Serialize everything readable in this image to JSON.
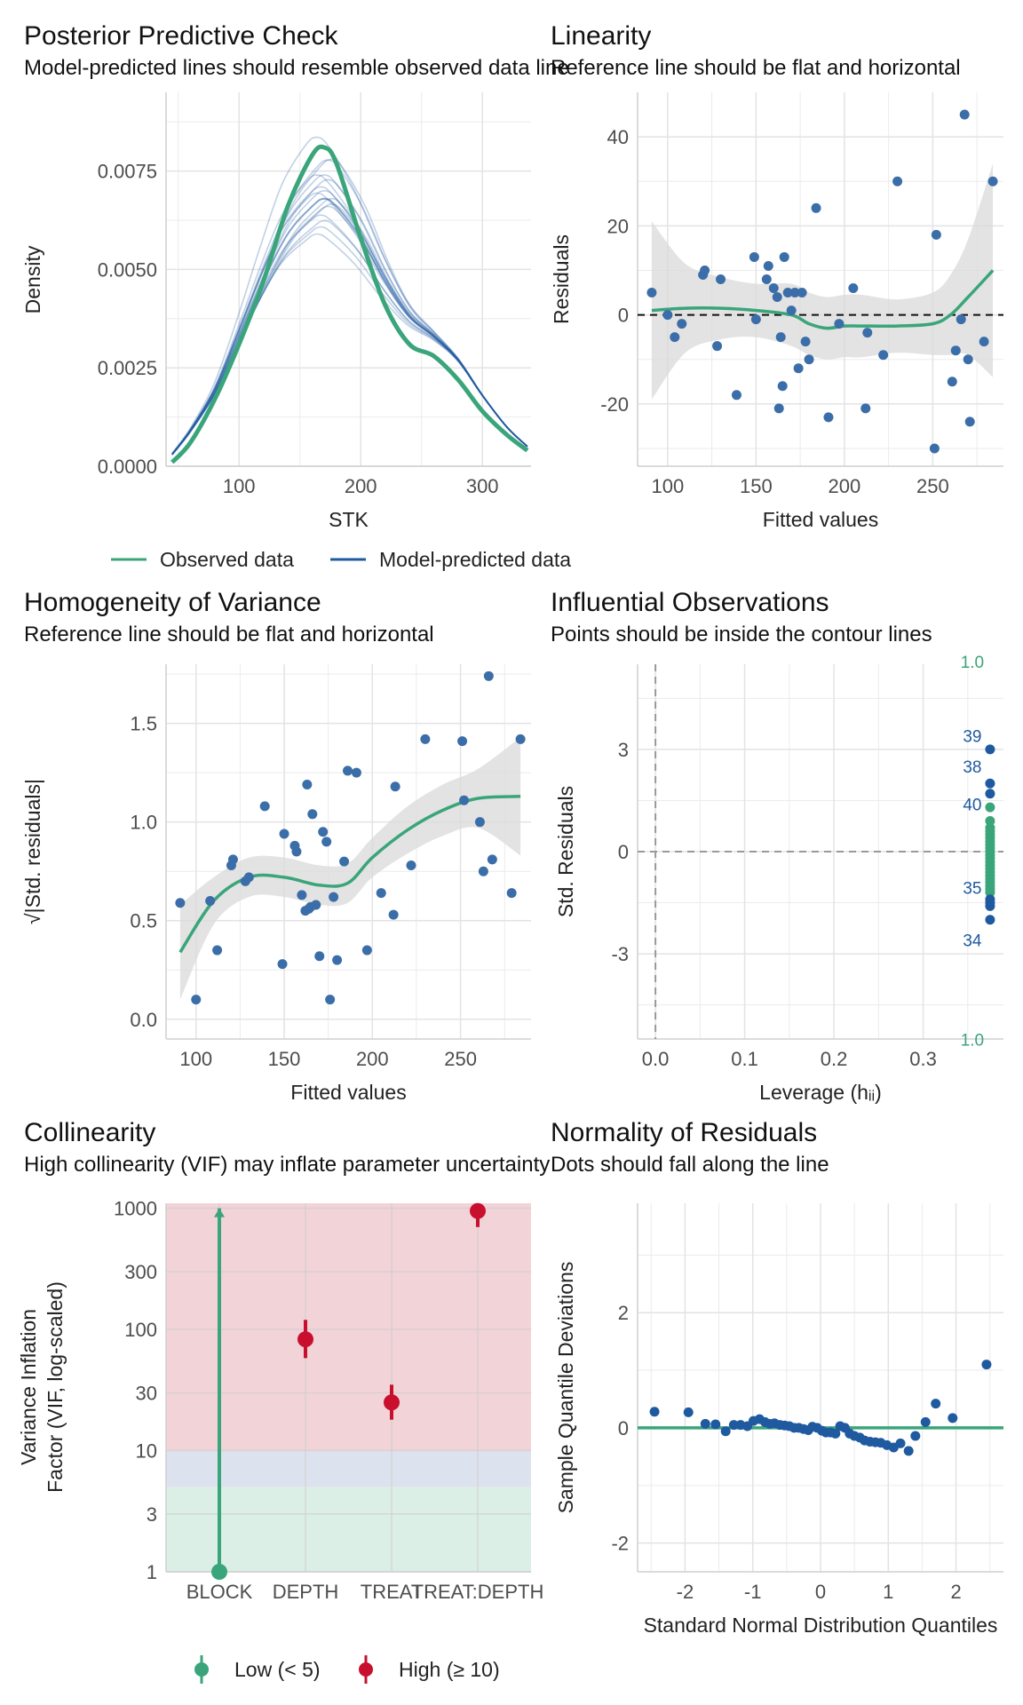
{
  "colors": {
    "observed": "#3aa57a",
    "predicted": "#1f5aa0",
    "point": "#3b6ea8",
    "smooth": "#3aa57a",
    "ribbon": "#d9d9d9",
    "high": "#c8102e",
    "low": "#3aa57a",
    "zone_high": "#f2d3d8",
    "zone_mod": "#dde3ee",
    "zone_low": "#dcefe6"
  },
  "panels": {
    "ppc": {
      "title": "Posterior Predictive Check",
      "subtitle": "Model-predicted lines should resemble observed data line"
    },
    "linearity": {
      "title": "Linearity",
      "subtitle": "Reference line should be flat and horizontal"
    },
    "homog": {
      "title": "Homogeneity of Variance",
      "subtitle": "Reference line should be flat and horizontal"
    },
    "influ": {
      "title": "Influential Observations",
      "subtitle": "Points should be inside the contour lines"
    },
    "colli": {
      "title": "Collinearity",
      "subtitle": "High collinearity (VIF) may inflate parameter uncertainty"
    },
    "norm": {
      "title": "Normality of Residuals",
      "subtitle": "Dots should fall along the line"
    }
  },
  "legends": {
    "ppc": {
      "observed": "Observed data",
      "predicted": "Model-predicted data"
    },
    "colli": {
      "low": "Low (< 5)",
      "high": "High (≥ 10)"
    }
  },
  "chart_data": [
    {
      "id": "ppc",
      "type": "line",
      "xlabel": "STK",
      "ylabel": "Density",
      "xlim": [
        40,
        340
      ],
      "ylim": [
        0,
        0.0095
      ],
      "xticks": [
        100,
        200,
        300
      ],
      "yticks": [
        0.0,
        0.0025,
        0.005,
        0.0075
      ],
      "ytick_labels": [
        "0.0000",
        "0.0025",
        "0.0050",
        "0.0075"
      ],
      "series": [
        {
          "name": "Observed data",
          "x": [
            45,
            60,
            80,
            100,
            120,
            140,
            160,
            170,
            180,
            200,
            220,
            240,
            260,
            280,
            300,
            320,
            337
          ],
          "y": [
            0.0001,
            0.0006,
            0.0017,
            0.0031,
            0.0047,
            0.0066,
            0.0079,
            0.0081,
            0.0077,
            0.0058,
            0.0041,
            0.0031,
            0.0028,
            0.0022,
            0.0014,
            0.0008,
            0.0004
          ]
        },
        {
          "name": "Model-predicted data",
          "x": [
            45,
            60,
            80,
            100,
            120,
            140,
            160,
            170,
            180,
            200,
            220,
            240,
            260,
            280,
            300,
            320,
            337
          ],
          "y": [
            0.0003,
            0.0009,
            0.0019,
            0.0033,
            0.0047,
            0.0059,
            0.0066,
            0.0068,
            0.0066,
            0.0058,
            0.0047,
            0.0038,
            0.0033,
            0.0027,
            0.0018,
            0.001,
            0.0005
          ]
        }
      ]
    },
    {
      "id": "linearity",
      "type": "scatter",
      "xlabel": "Fitted values",
      "ylabel": "Residuals",
      "xlim": [
        83,
        290
      ],
      "ylim": [
        -34,
        50
      ],
      "xticks": [
        100,
        150,
        200,
        250
      ],
      "yticks": [
        -20,
        0,
        20,
        40
      ],
      "points": [
        [
          91,
          5
        ],
        [
          100,
          0
        ],
        [
          104,
          -5
        ],
        [
          108,
          -2
        ],
        [
          120,
          9
        ],
        [
          121,
          10
        ],
        [
          128,
          -7
        ],
        [
          130,
          8
        ],
        [
          139,
          -18
        ],
        [
          149,
          13
        ],
        [
          150,
          -1
        ],
        [
          156,
          8
        ],
        [
          157,
          11
        ],
        [
          160,
          6
        ],
        [
          162,
          4
        ],
        [
          163,
          -21
        ],
        [
          164,
          -5
        ],
        [
          166,
          13
        ],
        [
          165,
          -16
        ],
        [
          168,
          5
        ],
        [
          170,
          1
        ],
        [
          172,
          5
        ],
        [
          174,
          -12
        ],
        [
          176,
          5
        ],
        [
          178,
          -6
        ],
        [
          180,
          -10
        ],
        [
          184,
          24
        ],
        [
          191,
          -23
        ],
        [
          197,
          -2
        ],
        [
          205,
          6
        ],
        [
          212,
          -21
        ],
        [
          213,
          -4
        ],
        [
          222,
          -9
        ],
        [
          230,
          30
        ],
        [
          252,
          18
        ],
        [
          251,
          -30
        ],
        [
          261,
          -15
        ],
        [
          263,
          -8
        ],
        [
          266,
          -1
        ],
        [
          268,
          45
        ],
        [
          270,
          -10
        ],
        [
          271,
          -24
        ],
        [
          279,
          -6
        ],
        [
          284,
          30
        ]
      ],
      "smooth": {
        "x": [
          91,
          110,
          130,
          150,
          170,
          180,
          190,
          200,
          210,
          230,
          250,
          260,
          270,
          284
        ],
        "y": [
          1,
          1.5,
          1.5,
          1,
          0,
          -2,
          -3,
          -2.5,
          -2.5,
          -2.5,
          -2,
          0,
          4,
          10
        ]
      },
      "ribbon_halfwidth": [
        20,
        10,
        7,
        6,
        7,
        7,
        7,
        7,
        7,
        6,
        7,
        9,
        13,
        24
      ]
    },
    {
      "id": "homog",
      "type": "scatter",
      "xlabel": "Fitted values",
      "ylabel": "√|Std. residuals|",
      "xlim": [
        83,
        290
      ],
      "ylim": [
        -0.1,
        1.8
      ],
      "xticks": [
        100,
        150,
        200,
        250
      ],
      "yticks": [
        0.0,
        0.5,
        1.0,
        1.5
      ],
      "ytick_labels": [
        "0.0",
        "0.5",
        "1.0",
        "1.5"
      ],
      "points": [
        [
          91,
          0.59
        ],
        [
          100,
          0.1
        ],
        [
          108,
          0.6
        ],
        [
          112,
          0.35
        ],
        [
          120,
          0.78
        ],
        [
          121,
          0.81
        ],
        [
          128,
          0.7
        ],
        [
          130,
          0.72
        ],
        [
          139,
          1.08
        ],
        [
          149,
          0.28
        ],
        [
          150,
          0.94
        ],
        [
          156,
          0.88
        ],
        [
          157,
          0.85
        ],
        [
          160,
          0.63
        ],
        [
          162,
          0.55
        ],
        [
          163,
          1.19
        ],
        [
          164,
          0.56
        ],
        [
          166,
          1.04
        ],
        [
          165,
          0.57
        ],
        [
          168,
          0.58
        ],
        [
          170,
          0.32
        ],
        [
          172,
          0.95
        ],
        [
          174,
          0.9
        ],
        [
          176,
          0.1
        ],
        [
          178,
          0.62
        ],
        [
          180,
          0.3
        ],
        [
          184,
          0.8
        ],
        [
          186,
          1.26
        ],
        [
          191,
          1.25
        ],
        [
          197,
          0.35
        ],
        [
          205,
          0.64
        ],
        [
          212,
          0.53
        ],
        [
          213,
          1.18
        ],
        [
          222,
          0.78
        ],
        [
          230,
          1.42
        ],
        [
          251,
          1.41
        ],
        [
          252,
          1.11
        ],
        [
          261,
          1.0
        ],
        [
          263,
          0.75
        ],
        [
          266,
          1.74
        ],
        [
          268,
          0.81
        ],
        [
          279,
          0.64
        ],
        [
          284,
          1.42
        ]
      ],
      "smooth": {
        "x": [
          91,
          110,
          130,
          150,
          170,
          186,
          200,
          220,
          240,
          260,
          284
        ],
        "y": [
          0.34,
          0.6,
          0.72,
          0.72,
          0.68,
          0.69,
          0.82,
          0.96,
          1.06,
          1.12,
          1.13
        ]
      },
      "ribbon_halfwidth": [
        0.24,
        0.12,
        0.1,
        0.1,
        0.1,
        0.1,
        0.1,
        0.12,
        0.13,
        0.15,
        0.3
      ]
    },
    {
      "id": "influ",
      "type": "scatter",
      "xlabel": "Leverage (hᵢᵢ)",
      "ylabel": "Std. Residuals",
      "xlim": [
        -0.02,
        0.39
      ],
      "ylim": [
        -5.5,
        5.5
      ],
      "xticks": [
        0.0,
        0.1,
        0.2,
        0.3
      ],
      "yticks": [
        -3,
        0,
        3
      ],
      "xtick_labels": [
        "0.0",
        "0.1",
        "0.2",
        "0.3"
      ],
      "leverage": 0.375,
      "points_y": [
        3.0,
        2.0,
        1.7,
        1.3,
        0.9,
        0.7,
        0.6,
        0.5,
        0.4,
        0.3,
        0.2,
        0.1,
        0.0,
        -0.1,
        -0.2,
        -0.3,
        -0.4,
        -0.5,
        -0.6,
        -0.7,
        -0.8,
        -0.9,
        -1.0,
        -1.1,
        -1.2,
        -1.4,
        -1.5,
        -1.6,
        -2.0
      ],
      "labels": [
        {
          "text": "39",
          "y": 3.4
        },
        {
          "text": "38",
          "y": 2.5
        },
        {
          "text": "40",
          "y": 1.4
        },
        {
          "text": "35",
          "y": -1.05
        },
        {
          "text": "34",
          "y": -2.6
        }
      ],
      "contour_labels": [
        {
          "text": "1.0",
          "y": 5.8
        },
        {
          "text": "1.0",
          "y": -5.7
        }
      ]
    },
    {
      "id": "colli",
      "type": "scatter",
      "xlabel": "",
      "ylabel": "Variance Inflation\nFactor (VIF, log-scaled)",
      "ylim": [
        1,
        1100
      ],
      "yscale": "log",
      "yticks": [
        1,
        3,
        10,
        30,
        100,
        300,
        1000
      ],
      "categories": [
        "BLOCK",
        "DEPTH",
        "TREAT",
        "TREAT:DEPTH"
      ],
      "values": [
        1,
        83,
        25,
        950
      ],
      "ci_low": [
        1,
        58,
        18,
        700
      ],
      "ci_high": [
        1000,
        120,
        35,
        1100
      ],
      "level": [
        "low",
        "high",
        "high",
        "high"
      ],
      "zones": {
        "low_max": 5,
        "moderate_max": 10
      }
    },
    {
      "id": "norm",
      "type": "scatter",
      "xlabel": "Standard Normal Distribution Quantiles",
      "ylabel": "Sample Quantile Deviations",
      "xlim": [
        -2.7,
        2.7
      ],
      "ylim": [
        -2.5,
        3.9
      ],
      "xticks": [
        -2,
        -1,
        0,
        1,
        2
      ],
      "yticks": [
        -2,
        0,
        2
      ],
      "points": [
        [
          -2.45,
          0.28
        ],
        [
          -1.95,
          0.27
        ],
        [
          -1.7,
          0.07
        ],
        [
          -1.55,
          0.06
        ],
        [
          -1.4,
          -0.06
        ],
        [
          -1.28,
          0.05
        ],
        [
          -1.18,
          0.05
        ],
        [
          -1.08,
          0.03
        ],
        [
          -0.99,
          0.12
        ],
        [
          -0.9,
          0.15
        ],
        [
          -0.82,
          0.1
        ],
        [
          -0.75,
          0.07
        ],
        [
          -0.68,
          0.08
        ],
        [
          -0.6,
          0.05
        ],
        [
          -0.53,
          0.04
        ],
        [
          -0.46,
          0.03
        ],
        [
          -0.39,
          0.0
        ],
        [
          -0.32,
          0.0
        ],
        [
          -0.25,
          -0.02
        ],
        [
          -0.18,
          -0.04
        ],
        [
          -0.12,
          0.02
        ],
        [
          -0.05,
          0.0
        ],
        [
          0.02,
          -0.05
        ],
        [
          0.08,
          -0.08
        ],
        [
          0.15,
          -0.08
        ],
        [
          0.22,
          -0.1
        ],
        [
          0.29,
          0.03
        ],
        [
          0.36,
          0.0
        ],
        [
          0.43,
          -0.1
        ],
        [
          0.5,
          -0.14
        ],
        [
          0.58,
          -0.17
        ],
        [
          0.65,
          -0.22
        ],
        [
          0.73,
          -0.24
        ],
        [
          0.81,
          -0.25
        ],
        [
          0.89,
          -0.26
        ],
        [
          0.98,
          -0.3
        ],
        [
          1.08,
          -0.34
        ],
        [
          1.18,
          -0.27
        ],
        [
          1.3,
          -0.4
        ],
        [
          1.4,
          -0.14
        ],
        [
          1.55,
          0.1
        ],
        [
          1.7,
          0.42
        ],
        [
          1.95,
          0.17
        ],
        [
          2.45,
          1.1
        ]
      ]
    }
  ]
}
